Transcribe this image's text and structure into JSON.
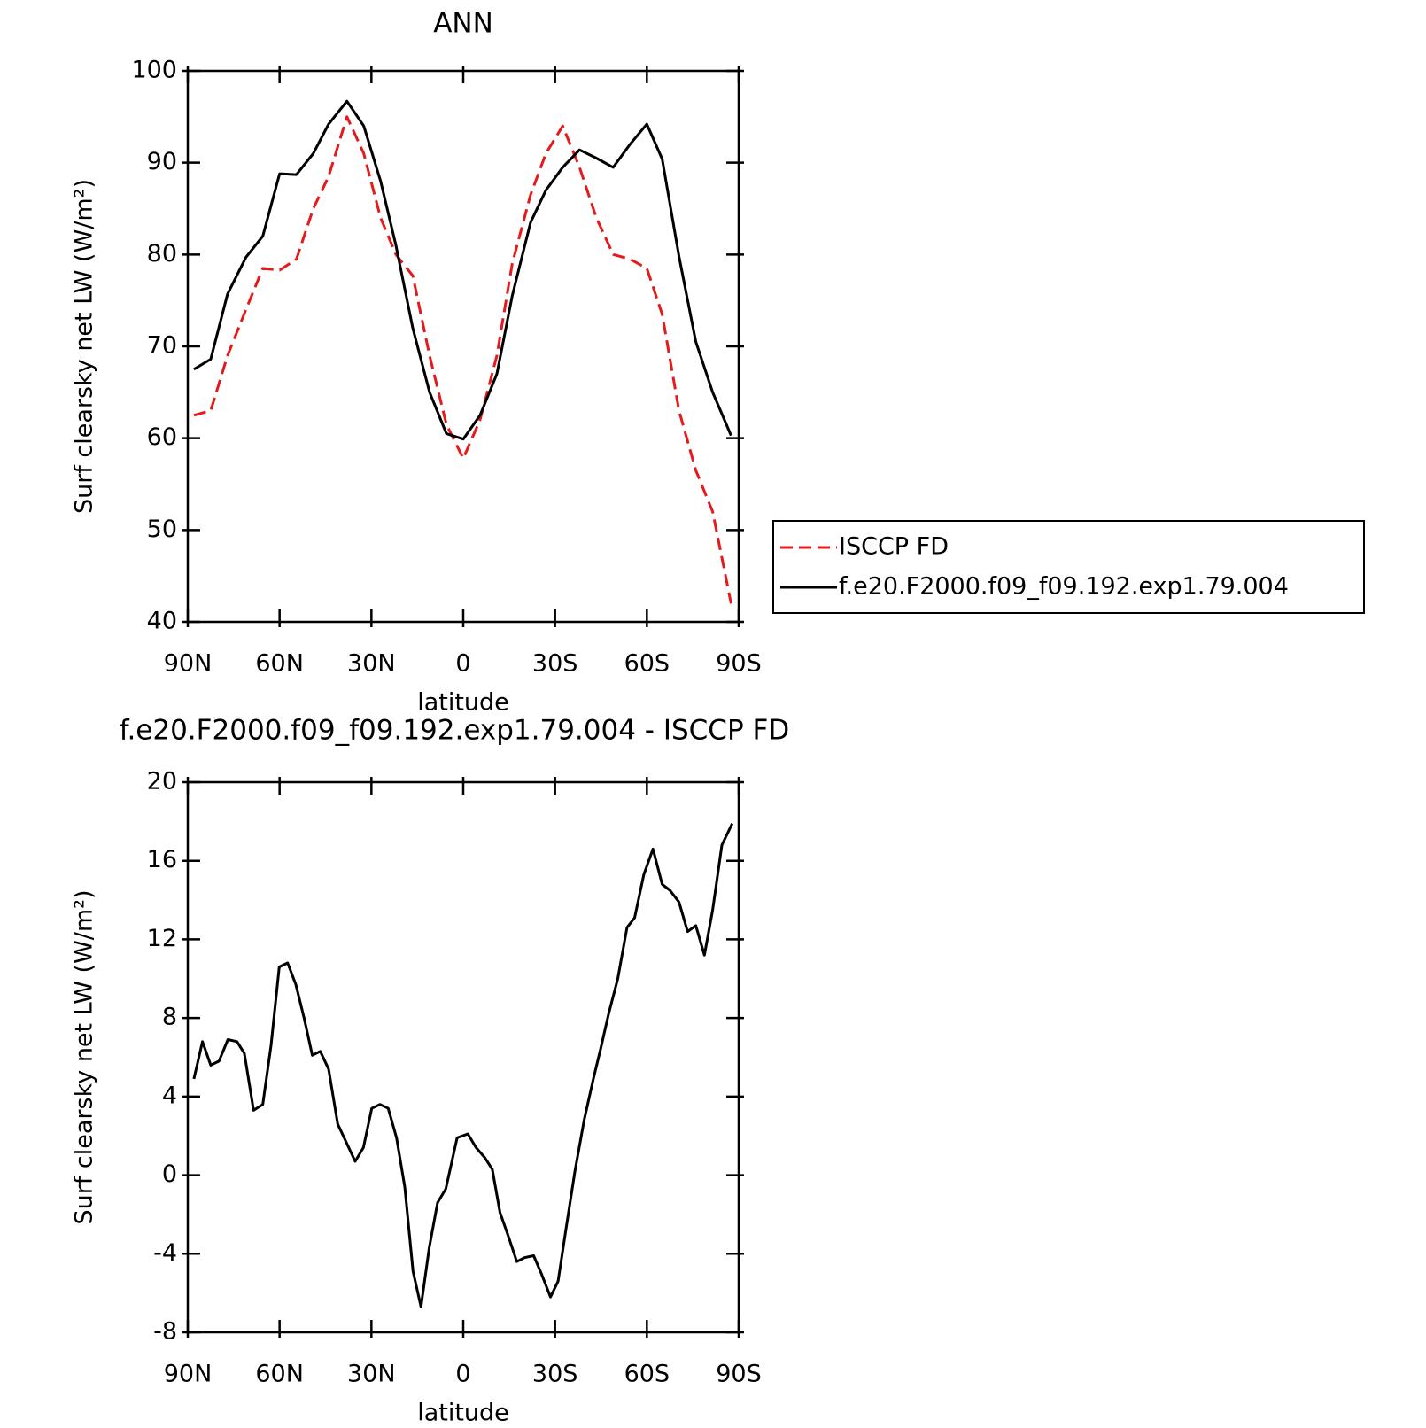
{
  "chart_data": [
    {
      "type": "line",
      "title": "ANN",
      "xlabel": "latitude",
      "ylabel": "Surf clearsky net LW (W/m²)",
      "xlim": [
        90,
        -90
      ],
      "ylim": [
        40,
        100
      ],
      "xticks": [
        {
          "value": 90,
          "label": "90N"
        },
        {
          "value": 60,
          "label": "60N"
        },
        {
          "value": 30,
          "label": "30N"
        },
        0,
        {
          "value": -30,
          "label": "30S"
        },
        {
          "value": -60,
          "label": "60S"
        },
        {
          "value": -90,
          "label": "90S"
        }
      ],
      "yticks": [
        40,
        50,
        60,
        70,
        80,
        90,
        100
      ],
      "legend": "right",
      "x": [
        88,
        82.5,
        77,
        71,
        65.5,
        60,
        54.5,
        49,
        44,
        38,
        32.5,
        27,
        22,
        16.5,
        11,
        5.5,
        0,
        -5.5,
        -11,
        -16,
        -22,
        -27,
        -32.5,
        -38,
        -43.5,
        -49,
        -54.5,
        -60,
        -65,
        -70.5,
        -76,
        -81.5,
        -87.5
      ],
      "series": [
        {
          "name": "ISCCP FD",
          "color": "#e41a1c",
          "linestyle": "dashed",
          "values": [
            62.5,
            63,
            69,
            74,
            78.5,
            78.3,
            79.5,
            85,
            88.5,
            95,
            91,
            84,
            80,
            77.7,
            69,
            61.5,
            57.8,
            62,
            69,
            79,
            86.5,
            91,
            94,
            89.5,
            84,
            80,
            79.5,
            78.5,
            73.5,
            63,
            56.5,
            52,
            42
          ]
        },
        {
          "name": "f.e20.F2000.f09_f09.192.exp1.79.004",
          "color": "#000000",
          "linestyle": "solid",
          "values": [
            67.5,
            68.6,
            75.7,
            79.7,
            82,
            88.8,
            88.7,
            91,
            94.2,
            96.7,
            94,
            88,
            81,
            72,
            65,
            60.5,
            59.9,
            62.5,
            67,
            75.5,
            83.5,
            87,
            89.5,
            91.4,
            90.5,
            89.5,
            92,
            94.2,
            90.4,
            79.8,
            70.5,
            65,
            60.3
          ]
        }
      ]
    },
    {
      "type": "line",
      "title": "f.e20.F2000.f09_f09.192.exp1.79.004 - ISCCP FD",
      "xlabel": "latitude",
      "ylabel": "Surf clearsky net LW (W/m²)",
      "xlim": [
        90,
        -90
      ],
      "ylim": [
        -8,
        20
      ],
      "xticks": [
        {
          "value": 90,
          "label": "90N"
        },
        {
          "value": 60,
          "label": "60N"
        },
        {
          "value": 30,
          "label": "30N"
        },
        0,
        {
          "value": -30,
          "label": "30S"
        },
        {
          "value": -60,
          "label": "60S"
        },
        {
          "value": -90,
          "label": "90S"
        }
      ],
      "yticks": [
        -8,
        -4,
        0,
        4,
        8,
        12,
        16,
        20
      ],
      "x": [
        88,
        85.2,
        82.5,
        79.8,
        76.9,
        73.9,
        71.5,
        68.5,
        65.5,
        62.8,
        60.1,
        57.4,
        54.7,
        52,
        49.3,
        46.7,
        44,
        41,
        38,
        35.3,
        32.6,
        29.9,
        27.2,
        24.5,
        21.8,
        19.1,
        16.4,
        13.8,
        11.1,
        8.4,
        5.7,
        2,
        -1.5,
        -4.2,
        -7,
        -9.5,
        -12,
        -14.5,
        -17.5,
        -20,
        -23,
        -25.5,
        -28.5,
        -31,
        -33.5,
        -36.5,
        -39.5,
        -42.5,
        -45,
        -47.5,
        -50.5,
        -53.5,
        -56,
        -59,
        -62,
        -65,
        -67.5,
        -70.5,
        -73.3,
        -76,
        -78.8,
        -81.5,
        -84.5,
        -87.9
      ],
      "series": [
        {
          "color": "#000000",
          "linestyle": "solid",
          "values": [
            4.9,
            6.8,
            5.6,
            5.8,
            6.9,
            6.8,
            6.2,
            3.3,
            3.6,
            6.6,
            10.6,
            10.8,
            9.7,
            8,
            6.1,
            6.3,
            5.4,
            2.6,
            1.6,
            0.7,
            1.4,
            3.4,
            3.6,
            3.4,
            1.9,
            -0.6,
            -4.9,
            -6.7,
            -3.7,
            -1.4,
            -0.7,
            1.9,
            2.1,
            1.4,
            0.9,
            0.3,
            -1.9,
            -3,
            -4.4,
            -4.2,
            -4.1,
            -5,
            -6.2,
            -5.4,
            -2.8,
            0.2,
            2.8,
            4.9,
            6.5,
            8.2,
            10,
            12.6,
            13.1,
            15.3,
            16.6,
            14.8,
            14.5,
            13.9,
            12.4,
            12.7,
            11.2,
            13.5,
            16.8,
            17.9
          ]
        }
      ]
    }
  ]
}
